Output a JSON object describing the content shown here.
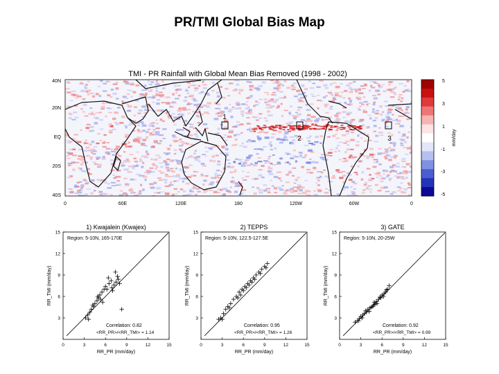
{
  "slide": {
    "title": "PR/TMI Global Bias Map"
  },
  "map": {
    "title": "TMI - PR Rainfall with Global Mean Bias Removed (1998 - 2002)",
    "lat_labels": [
      "40N",
      "20N",
      "EQ",
      "20S",
      "40S"
    ],
    "lon_labels": [
      "0",
      "60E",
      "120E",
      "180",
      "120W",
      "60W",
      "0"
    ],
    "regions": [
      {
        "number": "1"
      },
      {
        "number": "2"
      },
      {
        "number": "3"
      }
    ],
    "colorbar": {
      "unit": "mm/day",
      "ticks": [
        "5",
        "3",
        "1",
        "-1",
        "-3",
        "-5"
      ],
      "colors": [
        "#a00000",
        "#c81010",
        "#e03a3a",
        "#ef7676",
        "#f7b4b4",
        "#fde4e4",
        "#ffffff",
        "#e2e6f8",
        "#b6c0f0",
        "#8090e2",
        "#4a5ed2",
        "#2434b8",
        "#0a0a96"
      ]
    }
  },
  "chart_data": [
    {
      "type": "scatter",
      "title": "1) Kwajalein (Kwajex)",
      "region_text": "Region: 5-10N, 165-170E",
      "correlation": "Correlation: 0.82",
      "ratio": "<RR_PR>/<RR_TMI> = 1.14",
      "xlabel": "RR_PR (mm/day)",
      "ylabel": "RR_TMI (mm/day)",
      "xlim": [
        0,
        15
      ],
      "ylim": [
        0,
        15
      ],
      "xticks": [
        "0",
        "3",
        "6",
        "9",
        "12",
        "15"
      ],
      "yticks": [
        "15",
        "12",
        "9",
        "6",
        "3"
      ],
      "x": [
        3.2,
        3.5,
        3.8,
        4.0,
        4.3,
        4.5,
        4.8,
        5.0,
        5.2,
        5.5,
        5.8,
        6.0,
        6.2,
        6.5,
        6.8,
        7.0,
        7.2,
        7.5,
        7.8,
        8.0,
        3.6,
        4.2,
        5.6,
        6.4,
        7.4,
        8.3,
        4.9,
        6.9,
        5.3,
        7.7
      ],
      "y": [
        3.0,
        3.4,
        3.8,
        4.2,
        4.6,
        5.0,
        5.4,
        5.8,
        6.2,
        6.6,
        7.0,
        7.4,
        7.0,
        7.8,
        8.2,
        6.8,
        7.6,
        8.0,
        8.4,
        7.8,
        2.8,
        4.8,
        5.2,
        8.6,
        9.4,
        4.2,
        6.0,
        7.2,
        5.6,
        8.8
      ]
    },
    {
      "type": "scatter",
      "title": "2) TEPPS",
      "region_text": "Region: 5-10N, 122.5-127.5E",
      "correlation": "Correlation: 0.95",
      "ratio": "<RR_PR>/<RR_TMI> = 1.26",
      "xlabel": "RR_PR (mm/day)",
      "ylabel": "RR_TMI (mm/day)",
      "xlim": [
        0,
        15
      ],
      "ylim": [
        0,
        15
      ],
      "xticks": [
        "0",
        "3",
        "6",
        "9",
        "12",
        "15"
      ],
      "yticks": [
        "15",
        "12",
        "9",
        "6",
        "3"
      ],
      "x": [
        2.5,
        2.8,
        3.2,
        3.5,
        3.8,
        4.2,
        4.6,
        5.0,
        5.4,
        5.8,
        6.2,
        6.6,
        7.0,
        7.4,
        7.8,
        8.2,
        8.6,
        9.0,
        9.4,
        3.0,
        4.0,
        5.2,
        6.0,
        6.8,
        7.6,
        8.4,
        9.2,
        5.6,
        6.4,
        7.2
      ],
      "y": [
        2.8,
        3.0,
        3.6,
        4.2,
        4.6,
        5.0,
        5.6,
        6.0,
        6.6,
        7.0,
        7.4,
        7.8,
        8.2,
        8.6,
        9.0,
        9.4,
        9.8,
        10.2,
        10.6,
        2.8,
        4.4,
        5.8,
        6.8,
        7.6,
        8.4,
        9.2,
        10.0,
        6.2,
        7.2,
        8.0
      ]
    },
    {
      "type": "scatter",
      "title": "3) GATE",
      "region_text": "Region: 5-10N, 20-25W",
      "correlation": "Correlation: 0.92",
      "ratio": "<RR_PR>/<RR_TMI> = 0.99",
      "xlabel": "RR_PR (mm/day)",
      "ylabel": "RR_TMI (mm/day)",
      "xlim": [
        0,
        15
      ],
      "ylim": [
        0,
        15
      ],
      "xticks": [
        "0",
        "3",
        "6",
        "9",
        "12",
        "15"
      ],
      "yticks": [
        "15",
        "12",
        "9",
        "6",
        "3"
      ],
      "x": [
        2.2,
        2.5,
        2.8,
        3.0,
        3.2,
        3.5,
        3.8,
        4.0,
        4.2,
        4.5,
        4.8,
        5.0,
        5.2,
        5.5,
        5.8,
        6.0,
        6.2,
        6.5,
        6.8,
        7.0,
        3.3,
        3.7,
        4.3,
        4.7,
        5.3,
        5.7,
        6.3,
        2.7,
        4.9,
        6.6
      ],
      "y": [
        2.4,
        2.6,
        2.9,
        3.2,
        3.0,
        3.6,
        3.8,
        4.2,
        3.9,
        4.5,
        4.8,
        4.9,
        5.3,
        5.6,
        5.8,
        6.2,
        6.0,
        6.6,
        7.0,
        7.5,
        3.4,
        4.0,
        4.4,
        4.6,
        5.0,
        5.9,
        6.4,
        2.6,
        5.2,
        6.9
      ]
    }
  ]
}
